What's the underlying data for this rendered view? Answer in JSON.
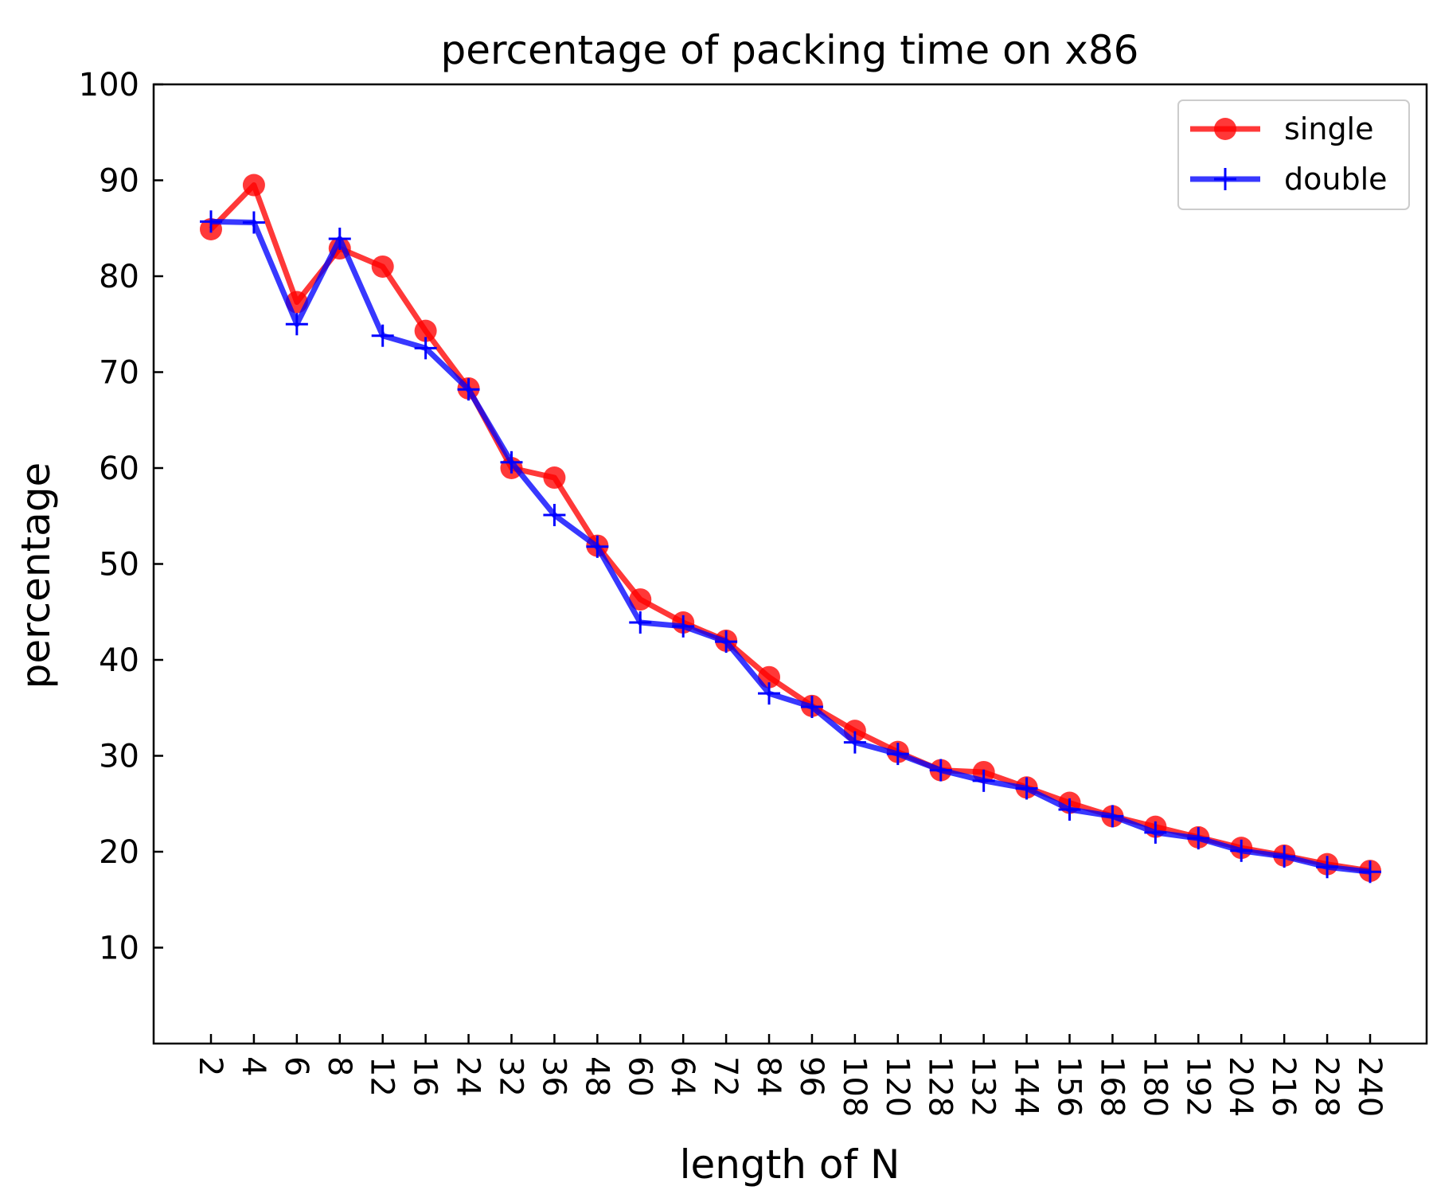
{
  "chart_data": {
    "type": "line",
    "title": "percentage of packing time on x86",
    "xlabel": "length of N",
    "ylabel": "percentage",
    "ylim": [
      0,
      100
    ],
    "yticks": [
      10,
      20,
      30,
      40,
      50,
      60,
      70,
      80,
      90,
      100
    ],
    "grid": false,
    "legend_position": "top-right",
    "categories": [
      "2",
      "4",
      "6",
      "8",
      "12",
      "16",
      "24",
      "32",
      "36",
      "48",
      "60",
      "64",
      "72",
      "84",
      "96",
      "108",
      "120",
      "128",
      "132",
      "144",
      "156",
      "168",
      "180",
      "192",
      "204",
      "216",
      "228",
      "240"
    ],
    "series": [
      {
        "name": "single",
        "color": "#ff0000",
        "marker": "circle",
        "values": [
          84.9,
          89.5,
          77.3,
          82.9,
          81.0,
          74.3,
          68.3,
          60.0,
          59.0,
          51.9,
          46.3,
          43.9,
          42.0,
          38.2,
          35.2,
          32.6,
          30.4,
          28.5,
          28.3,
          26.7,
          25.1,
          23.7,
          22.6,
          21.5,
          20.4,
          19.6,
          18.7,
          18.0
        ]
      },
      {
        "name": "double",
        "color": "#0000ff",
        "marker": "plus",
        "values": [
          85.7,
          85.6,
          75.0,
          83.9,
          73.8,
          72.5,
          68.2,
          60.6,
          55.1,
          51.8,
          43.9,
          43.5,
          41.9,
          36.5,
          35.1,
          31.4,
          30.2,
          28.5,
          27.4,
          26.6,
          24.4,
          23.7,
          22.0,
          21.4,
          20.1,
          19.5,
          18.4,
          17.9
        ]
      }
    ]
  }
}
